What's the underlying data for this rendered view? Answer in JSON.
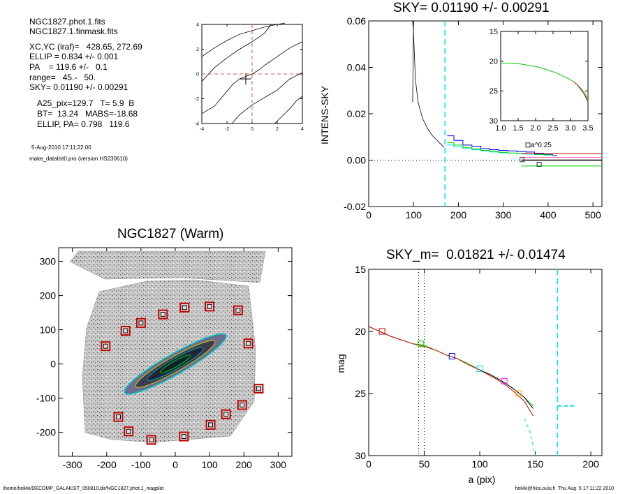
{
  "info": {
    "lines": [
      "NGC1827.phot.1.fits",
      "NGC1827.1.finmask.fits",
      "XC,YC (iraf)=   428.65, 272.69",
      "ELLIP = 0.834 +/- 0.001",
      "PA    = 119.6 +/-   0.1",
      "range=   45.-   50.",
      "SKY= 0.01190 +/- 0.00291",
      "A25_pix=129.7   T= 5.9  B",
      "BT=  13.24   MABS=-18.68",
      "ELLIP, PA= 0.798   119.6"
    ],
    "date": "5-Aug-2010 17:11:22.00",
    "program": "make_datalist0.pro (version HS230610)"
  },
  "footer": {
    "left": "/home/heikki/DECOMP_GALAKSIT_050810.dir/NGC1827.phot.1_magplot",
    "right": "heikki@hiisi.oulu.fi  Thu Aug  5 17:11:22 2010"
  },
  "chart_data": [
    {
      "id": "center-plot",
      "type": "line",
      "title": "",
      "xlabel": "",
      "ylabel": "",
      "xlim": [
        -4,
        4
      ],
      "ylim": [
        -4,
        4
      ],
      "xticks": [
        "-4",
        "-2",
        "0",
        "2",
        "4"
      ],
      "yticks": [
        "-4",
        "-2",
        "0",
        "2",
        "4"
      ],
      "reference_lines": {
        "x": 0,
        "y": 0,
        "color": "#e05050",
        "style": "dashed"
      },
      "marker": {
        "x": -0.5,
        "y": -0.4,
        "symbol": "+"
      },
      "contours": [
        {
          "x": [
            -4.0,
            -3.0,
            -2.0,
            -1.0,
            0.0,
            1.0,
            2.0,
            2.6
          ],
          "y": [
            1.4,
            2.1,
            2.7,
            3.2,
            3.5,
            3.8,
            4.0,
            4.1
          ]
        },
        {
          "x": [
            -4.0,
            -3.0,
            -2.0,
            -1.0,
            0.0,
            1.0,
            1.5
          ],
          "y": [
            -0.6,
            0.5,
            1.3,
            2.0,
            2.6,
            3.3,
            4.0
          ]
        },
        {
          "x": [
            -4.0,
            -3.0,
            -2.0,
            -1.5,
            -1.0,
            -0.5,
            0.0,
            0.5,
            1.0,
            2.0,
            3.0,
            4.0
          ],
          "y": [
            -3.2,
            -2.6,
            -1.4,
            -0.8,
            -0.4,
            -0.2,
            0.0,
            0.3,
            0.7,
            1.4,
            2.1,
            2.6
          ]
        },
        {
          "x": [
            -1.6,
            -1.0,
            0.0,
            1.0,
            2.0,
            3.0,
            4.0
          ],
          "y": [
            -4.0,
            -3.3,
            -2.5,
            -1.9,
            -1.3,
            -0.4,
            0.1
          ]
        },
        {
          "x": [
            1.8,
            2.5,
            3.0,
            3.5,
            4.0
          ],
          "y": [
            -4.0,
            -3.3,
            -2.8,
            -2.2,
            -1.8
          ]
        }
      ]
    },
    {
      "id": "sky-plot",
      "type": "line",
      "title": "SKY= 0.01190 +/- 0.00291",
      "xlabel": "",
      "ylabel": "INTENS-SKY",
      "xlim": [
        0,
        520
      ],
      "ylim": [
        -0.02,
        0.06
      ],
      "xticks": [
        "0",
        "100",
        "200",
        "300",
        "400",
        "500"
      ],
      "yticks": [
        "-0.02",
        "0.00",
        "0.02",
        "0.04",
        "0.06"
      ],
      "vline": {
        "x": 170,
        "color": "#00e5ee",
        "style": "dashed"
      },
      "zero_line": {
        "y": 0,
        "style": "dotted"
      },
      "profile": {
        "x": [
          98,
          100,
          104,
          110,
          120,
          130,
          140,
          150,
          160,
          168
        ],
        "y": [
          0.06,
          0.055,
          0.035,
          0.025,
          0.018,
          0.014,
          0.011,
          0.009,
          0.007,
          0.0055
        ]
      },
      "profile_tail": {
        "x": [
          98,
          100
        ],
        "y": [
          0.025,
          0.06
        ]
      },
      "steps": [
        {
          "color": "#0000ff",
          "x": [
            175,
            190,
            210,
            230,
            250,
            270,
            290,
            310,
            330,
            350,
            370,
            390,
            410,
            420
          ],
          "y": [
            0.0105,
            0.0085,
            0.0065,
            0.006,
            0.005,
            0.0045,
            0.0042,
            0.004,
            0.0037,
            0.0035,
            0.003,
            0.0025,
            0.002,
            0.002
          ]
        },
        {
          "color": "#00e5ee",
          "x": [
            175,
            190,
            210,
            230,
            250,
            270,
            290,
            310,
            330,
            350,
            370,
            390,
            410
          ],
          "y": [
            0.0065,
            0.0058,
            0.005,
            0.0045,
            0.004,
            0.0035,
            0.0032,
            0.003,
            0.0028,
            0.0026,
            0.0024,
            0.0022,
            0.002
          ]
        },
        {
          "color": "#00cc00",
          "x": [
            175,
            190,
            210,
            230,
            250,
            270,
            290,
            310,
            330,
            350,
            370,
            390,
            410
          ],
          "y": [
            0.0075,
            0.0065,
            0.0055,
            0.0048,
            0.0042,
            0.0038,
            0.0034,
            0.0031,
            0.0029,
            0.0027,
            0.0025,
            0.0023,
            0.0021
          ]
        }
      ],
      "hlines": [
        {
          "color": "#cc0000",
          "x": [
            340,
            520
          ],
          "y": 0.0028
        },
        {
          "color": "#000000",
          "x": [
            340,
            520
          ],
          "y": 0.0
        },
        {
          "color": "#ff66cc",
          "x": [
            340,
            520
          ],
          "y": 0.0012
        },
        {
          "color": "#00cc00",
          "x": [
            340,
            520
          ],
          "y": -0.0025
        }
      ],
      "boxes": [
        {
          "x": 355,
          "y": 0.0065
        },
        {
          "x": 342,
          "y": 0.0002
        },
        {
          "x": 380,
          "y": -0.0018
        }
      ]
    },
    {
      "id": "sky-inset",
      "type": "line",
      "title": "",
      "xlabel": "a^0.25",
      "ylabel": "",
      "xlim": [
        1.0,
        3.5
      ],
      "ylim": [
        30,
        15
      ],
      "xticks": [
        "1.0",
        "1.5",
        "2.0",
        "2.5",
        "3.0",
        "3.5"
      ],
      "yticks": [
        "15",
        "20",
        "25",
        "30"
      ],
      "series": [
        {
          "color": "#00cc00",
          "x": [
            1.0,
            1.5,
            2.0,
            2.3,
            2.6,
            2.9,
            3.1,
            3.2,
            3.3,
            3.4,
            3.5
          ],
          "y": [
            20.3,
            20.4,
            20.9,
            21.4,
            22.0,
            22.8,
            23.5,
            24.0,
            24.6,
            25.3,
            26.5
          ]
        },
        {
          "color": "#cc0000",
          "x": [
            3.1,
            3.2,
            3.3,
            3.4,
            3.5
          ],
          "y": [
            23.5,
            24.0,
            24.8,
            25.6,
            26.8
          ]
        }
      ]
    },
    {
      "id": "image-plot",
      "type": "scatter",
      "title": "NGC1827 (Warm)",
      "xlabel": "",
      "ylabel": "",
      "xlim": [
        -340,
        340
      ],
      "ylim": [
        -270,
        340
      ],
      "xticks": [
        "-300",
        "-200",
        "-100",
        "0",
        "100",
        "200",
        "300"
      ],
      "yticks": [
        "-200",
        "-100",
        "0",
        "100",
        "200",
        "300"
      ],
      "mask_boxes": [
        {
          "x": -203,
          "y": 52
        },
        {
          "x": -145,
          "y": 97
        },
        {
          "x": -100,
          "y": 120
        },
        {
          "x": -36,
          "y": 145
        },
        {
          "x": 27,
          "y": 165
        },
        {
          "x": 100,
          "y": 168
        },
        {
          "x": 183,
          "y": 157
        },
        {
          "x": 213,
          "y": 60
        },
        {
          "x": 243,
          "y": -72
        },
        {
          "x": 195,
          "y": -120
        },
        {
          "x": 148,
          "y": -147
        },
        {
          "x": 103,
          "y": -178
        },
        {
          "x": 25,
          "y": -212
        },
        {
          "x": -70,
          "y": -222
        },
        {
          "x": -136,
          "y": -197
        },
        {
          "x": -166,
          "y": -155
        }
      ],
      "galaxy": {
        "x": 0,
        "y": 0,
        "a": 170,
        "b": 30,
        "pa_deg": 29.6
      }
    },
    {
      "id": "mag-plot",
      "type": "line",
      "title": "SKY_m=  0.01821 +/- 0.01474",
      "xlabel": "a (pix)",
      "ylabel": "mag",
      "xlim": [
        0,
        210
      ],
      "ylim": [
        30,
        15
      ],
      "xticks": [
        "0",
        "50",
        "100",
        "150",
        "200"
      ],
      "yticks": [
        "15",
        "20",
        "25",
        "30"
      ],
      "vlines": [
        {
          "x": 45,
          "color": "#000000",
          "style": "dotted"
        },
        {
          "x": 50,
          "color": "#000000",
          "style": "dotted"
        },
        {
          "x": 170,
          "color": "#00e5ee",
          "style": "dashed"
        }
      ],
      "series": [
        {
          "name": "",
          "color": "#00cc00",
          "x": [
            0,
            10,
            20,
            30,
            40,
            50,
            60,
            70,
            80,
            90,
            100,
            110,
            120,
            130,
            140,
            148
          ],
          "y": [
            19.6,
            20.0,
            20.4,
            20.7,
            21.0,
            21.1,
            21.5,
            21.9,
            22.2,
            22.6,
            23.1,
            23.5,
            24.0,
            24.6,
            25.3,
            26.0
          ]
        },
        {
          "name": "",
          "color": "#cc0000",
          "x": [
            0,
            10,
            20,
            30,
            40,
            50,
            60,
            70,
            80,
            90,
            100,
            110,
            120,
            130,
            140,
            148
          ],
          "y": [
            19.6,
            20.0,
            20.4,
            20.7,
            21.0,
            21.2,
            21.5,
            21.9,
            22.2,
            22.7,
            23.1,
            23.6,
            24.1,
            24.8,
            25.6,
            26.8
          ]
        },
        {
          "name": "",
          "color": "#000000",
          "x": [
            100,
            110,
            120,
            130,
            140,
            148
          ],
          "y": [
            23.1,
            23.5,
            24.0,
            24.6,
            25.3,
            26.2
          ]
        },
        {
          "name": "",
          "color": "#00e5ee",
          "x": [
            140,
            145,
            150
          ],
          "y": [
            27.0,
            28.0,
            30.0
          ]
        }
      ],
      "boxes": [
        {
          "x": 12,
          "y": 20.0,
          "color": "#cc0000"
        },
        {
          "x": 47,
          "y": 21.0,
          "color": "#00cc00"
        },
        {
          "x": 75,
          "y": 22.0,
          "color": "#0000ff"
        },
        {
          "x": 100,
          "y": 23.0,
          "color": "#00e5ee"
        },
        {
          "x": 122,
          "y": 24.0,
          "color": "#ff00ff"
        },
        {
          "x": 135,
          "y": 25.0,
          "color": "#ffaa00"
        }
      ],
      "sky_marker": {
        "x": [
          170,
          185
        ],
        "y": 26.0,
        "color": "#00e5ee"
      }
    }
  ]
}
